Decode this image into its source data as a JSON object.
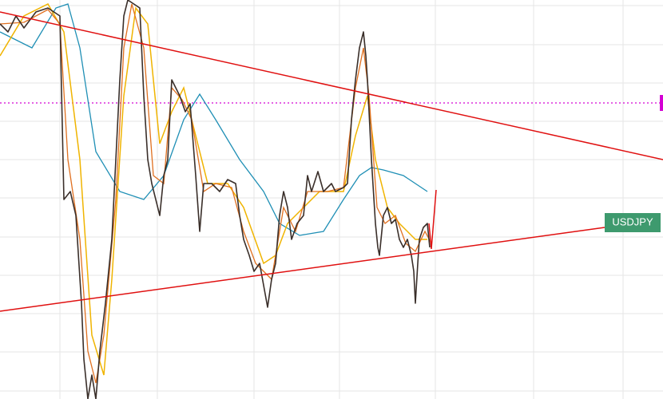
{
  "symbol_label": "USDJPY"
}
